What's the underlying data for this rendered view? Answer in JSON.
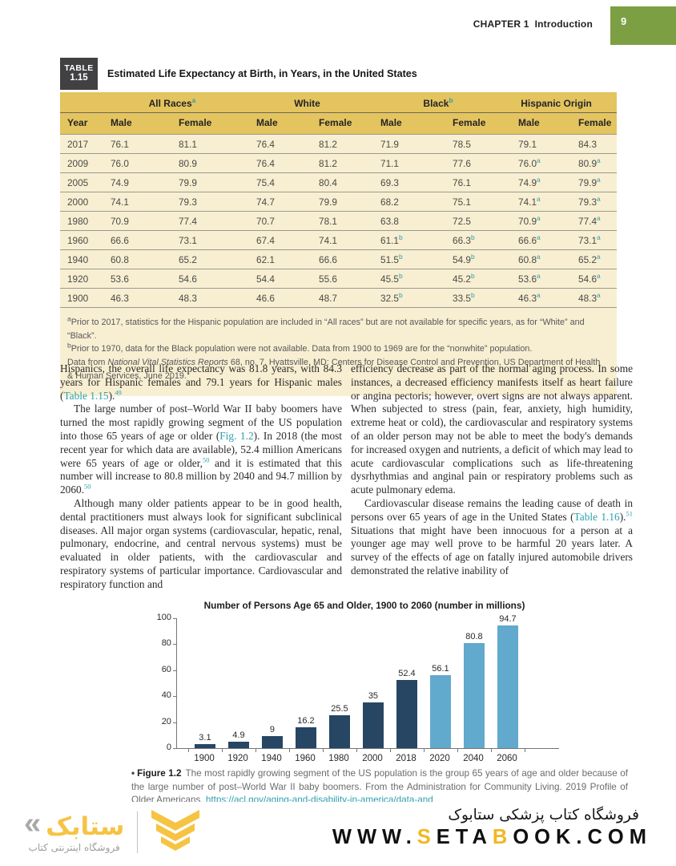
{
  "header": {
    "chapter_prefix": "CHAPTER 1",
    "chapter_title": "Introduction",
    "page_number": "9"
  },
  "table": {
    "tag_line1": "TABLE",
    "tag_line2": "1.15",
    "title": "Estimated Life Expectancy at Birth, in Years, in the United States",
    "group_headers": [
      {
        "label": "All Races",
        "sup": "a"
      },
      {
        "label": "White",
        "sup": ""
      },
      {
        "label": "Black",
        "sup": "b"
      },
      {
        "label": "Hispanic Origin",
        "sup": ""
      }
    ],
    "sub_headers": [
      "Year",
      "Male",
      "Female",
      "Male",
      "Female",
      "Male",
      "Female",
      "Male",
      "Female"
    ],
    "rows": [
      [
        "2017",
        "76.1",
        "81.1",
        "76.4",
        "81.2",
        "71.9",
        "78.5",
        "79.1",
        "84.3"
      ],
      [
        "2009",
        "76.0",
        "80.9",
        "76.4",
        "81.2",
        "71.1",
        "77.6",
        "76.0^a",
        "80.9^a"
      ],
      [
        "2005",
        "74.9",
        "79.9",
        "75.4",
        "80.4",
        "69.3",
        "76.1",
        "74.9^a",
        "79.9^a"
      ],
      [
        "2000",
        "74.1",
        "79.3",
        "74.7",
        "79.9",
        "68.2",
        "75.1",
        "74.1^a",
        "79.3^a"
      ],
      [
        "1980",
        "70.9",
        "77.4",
        "70.7",
        "78.1",
        "63.8",
        "72.5",
        "70.9^a",
        "77.4^a"
      ],
      [
        "1960",
        "66.6",
        "73.1",
        "67.4",
        "74.1",
        "61.1^b",
        "66.3^b",
        "66.6^a",
        "73.1^a"
      ],
      [
        "1940",
        "60.8",
        "65.2",
        "62.1",
        "66.6",
        "51.5^b",
        "54.9^b",
        "60.8^a",
        "65.2^a"
      ],
      [
        "1920",
        "53.6",
        "54.6",
        "54.4",
        "55.6",
        "45.5^b",
        "45.2^b",
        "53.6^a",
        "54.6^a"
      ],
      [
        "1900",
        "46.3",
        "48.3",
        "46.6",
        "48.7",
        "32.5^b",
        "33.5^b",
        "46.3^a",
        "48.3^a"
      ]
    ],
    "footnotes": [
      [
        {
          "t": "a",
          "s": "sup"
        },
        {
          "t": "Prior to 2017, statistics for the Hispanic population are included in “All races” but are not available for specific years, as for “White” and “Black”."
        }
      ],
      [
        {
          "t": "b",
          "s": "sup"
        },
        {
          "t": "Prior to 1970, data for the Black population were not available. Data from 1900 to 1969 are for the “nonwhite” population."
        }
      ],
      [
        {
          "t": "Data from "
        },
        {
          "t": "National Vital Statistics Reports",
          "s": "italic"
        },
        {
          "t": " 68, no. 7. Hyattsville, MD: Centers for Disease Control and Prevention, US Department of Health & Human Services, June 2019."
        }
      ]
    ]
  },
  "body_columns": {
    "left": [
      {
        "indent": false,
        "segments": [
          {
            "t": "Hispanics, the overall life expectancy was 81.8 years, with 84.3 years for Hispanic females and 79.1 years for Hispanic males ("
          },
          {
            "t": "Table 1.15",
            "s": "link"
          },
          {
            "t": ")."
          },
          {
            "t": "49",
            "s": "suplink"
          }
        ]
      },
      {
        "indent": true,
        "segments": [
          {
            "t": "The large number of post–World War II baby boomers have turned the most rapidly growing segment of the US population into those 65 years of age or older ("
          },
          {
            "t": "Fig. 1.2",
            "s": "link"
          },
          {
            "t": "). In 2018 (the most recent year for which data are available), 52.4 million Americans were 65 years of age or older,"
          },
          {
            "t": "50",
            "s": "suplink"
          },
          {
            "t": " and it is estimated that this number will increase to 80.8 million by 2040 and 94.7 million by 2060."
          },
          {
            "t": "50",
            "s": "suplink"
          }
        ]
      },
      {
        "indent": true,
        "segments": [
          {
            "t": "Although many older patients appear to be in good health, dental practitioners must always look for significant subclinical diseases. All major organ systems (cardiovascular, hepatic, renal, pulmonary, endocrine, and central nervous systems) must be evaluated in older patients, with the cardiovascular and respiratory systems of particular importance. Cardiovascular and respiratory function and"
          }
        ]
      }
    ],
    "right": [
      {
        "indent": false,
        "segments": [
          {
            "t": "efficiency decrease as part of the normal aging process. In some instances, a decreased efficiency manifests itself as heart failure or angina pectoris; however, overt signs are not always apparent. When subjected to stress (pain, fear, anxiety, high humidity, extreme heat or cold), the cardiovascular and respiratory systems of an older person may not be able to meet the body's demands for increased oxygen and nutrients, a deficit of which may lead to acute cardiovascular complications such as life-threatening dysrhythmias and anginal pain or respiratory problems such as acute pulmonary edema."
          }
        ]
      },
      {
        "indent": true,
        "segments": [
          {
            "t": "Cardiovascular disease remains the leading cause of death in persons over 65 years of age in the United States ("
          },
          {
            "t": "Table 1.16",
            "s": "link"
          },
          {
            "t": ")."
          },
          {
            "t": "51",
            "s": "suplink"
          },
          {
            "t": " Situations that might have been innocuous for a person at a younger age may well prove to be harmful 20 years later. A survey of the effects of age on fatally injured automobile drivers demonstrated the relative inability of"
          }
        ]
      }
    ]
  },
  "chart_data": {
    "type": "bar",
    "title": "Number of Persons Age 65 and Older, 1900 to 2060 (number in millions)",
    "categories": [
      "1900",
      "1920",
      "1940",
      "1960",
      "1980",
      "2000",
      "2018",
      "2020",
      "2040",
      "2060"
    ],
    "values": [
      3.1,
      4.9,
      9,
      16.2,
      25.5,
      35,
      52.4,
      56.1,
      80.8,
      94.7
    ],
    "value_labels": [
      "3.1",
      "4.9",
      "9",
      "16.2",
      "25.5",
      "35",
      "52.4",
      "56.1",
      "80.8",
      "94.7"
    ],
    "bar_groups": [
      "historical",
      "historical",
      "historical",
      "historical",
      "historical",
      "historical",
      "historical",
      "projected",
      "projected",
      "projected"
    ],
    "colors": {
      "historical": "#264663",
      "projected": "#62a9ce"
    },
    "xlabel": "",
    "ylabel": "",
    "ylim": [
      0,
      100
    ],
    "yticks": [
      0,
      20,
      40,
      60,
      80,
      100
    ],
    "grid": false,
    "legend": null
  },
  "figure": {
    "bullet": "•",
    "label": "Figure 1.2",
    "segments": [
      {
        "t": "The most rapidly growing segment of the US population is the group 65 years of age and older because of the large number of post–World War II baby boomers. From the Administration for Community Living. 2019 Profile of Older Americans. "
      },
      {
        "t": "https://acl.gov/aging-and-disability-in-america/data-and",
        "s": "link"
      }
    ]
  },
  "footer": {
    "logo_mark": "«",
    "logo_wordmark": "ستابک",
    "logo_tagline": "فروشگاه اینترنتی کتاب",
    "store_line_fa": "فروشگاه کتاب پزشکی ستابوک",
    "domain_segments": [
      {
        "t": "WWW."
      },
      {
        "t": "S",
        "s": "accent"
      },
      {
        "t": "ETA"
      },
      {
        "t": "B",
        "s": "accent"
      },
      {
        "t": "OOK.COM"
      }
    ]
  },
  "colors": {
    "header_green": "#7c9f44",
    "table_tag_bg": "#414042",
    "table_header_gold": "#e4c45f",
    "table_body_cream": "#f8efd2",
    "link_teal": "#2e9fae",
    "bar_dark_navy": "#264663",
    "bar_light_blue": "#62a9ce",
    "brand_yellow": "#f6c343"
  }
}
